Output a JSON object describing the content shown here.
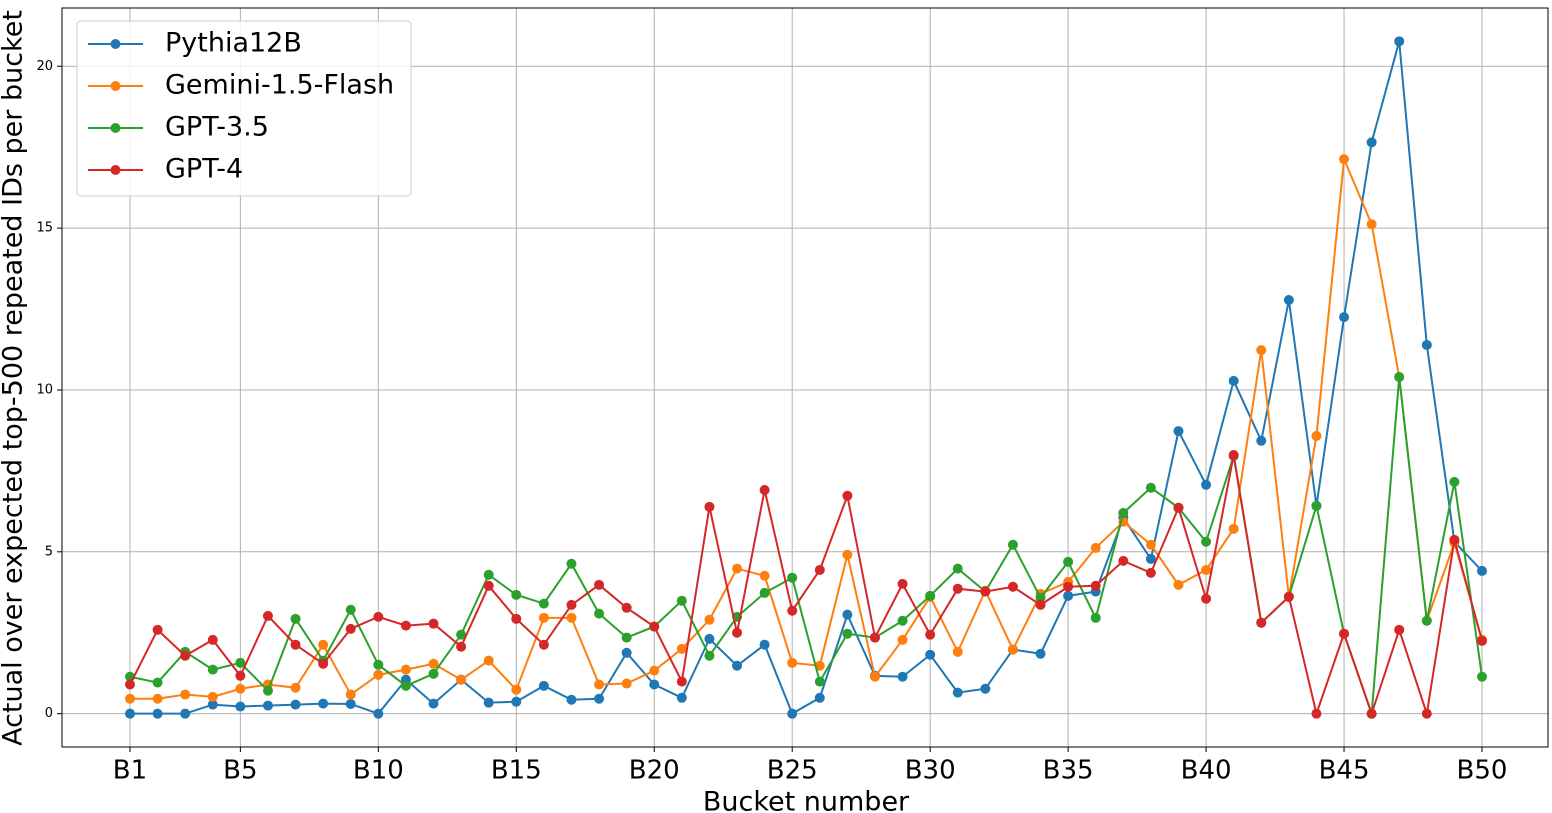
{
  "chart_data": {
    "type": "line",
    "xlabel": "Bucket number",
    "ylabel": "Actual over expected top-500 repeated IDs per bucket",
    "categories": [
      "B1",
      null,
      null,
      null,
      "B5",
      null,
      null,
      null,
      null,
      "B10",
      null,
      null,
      null,
      null,
      "B15",
      null,
      null,
      null,
      null,
      "B20",
      null,
      null,
      null,
      null,
      "B25",
      null,
      null,
      null,
      null,
      "B30",
      null,
      null,
      null,
      null,
      "B35",
      null,
      null,
      null,
      null,
      "B40",
      null,
      null,
      null,
      null,
      "B45",
      null,
      null,
      null,
      null,
      "B50"
    ],
    "ylim": [
      -1.03,
      21.8
    ],
    "yticks": [
      0,
      5,
      10,
      15,
      20
    ],
    "grid": true,
    "legend": "upper left",
    "series": [
      {
        "name": "Pythia12B",
        "color": "#1f77b4",
        "values": [
          0,
          0,
          0,
          0.28,
          0.22,
          0.25,
          0.28,
          0.31,
          0.3,
          0,
          1.05,
          0.31,
          1.05,
          0.34,
          0.37,
          0.86,
          0.43,
          0.46,
          1.88,
          0.9,
          0.49,
          2.31,
          1.48,
          2.13,
          0,
          0.49,
          3.06,
          1.17,
          1.14,
          1.82,
          0.65,
          0.77,
          1.98,
          1.85,
          3.64,
          3.77,
          6.05,
          4.78,
          8.73,
          7.07,
          10.28,
          8.43,
          12.78,
          6.42,
          12.25,
          17.65,
          20.77,
          11.39,
          5.31,
          4.41
        ]
      },
      {
        "name": "Gemini-1.5-Flash",
        "color": "#ff7f0e",
        "values": [
          0.46,
          0.46,
          0.59,
          0.52,
          0.77,
          0.9,
          0.8,
          2.13,
          0.59,
          1.2,
          1.36,
          1.54,
          1.05,
          1.64,
          0.74,
          2.96,
          2.96,
          0.9,
          0.93,
          1.33,
          2.0,
          2.9,
          4.48,
          4.26,
          1.57,
          1.48,
          4.91,
          1.14,
          2.28,
          3.61,
          1.91,
          3.8,
          1.98,
          3.7,
          4.07,
          5.12,
          5.93,
          5.22,
          3.98,
          4.44,
          5.71,
          11.23,
          3.61,
          8.58,
          17.13,
          15.12,
          10.4,
          2.87,
          5.28,
          2.28
        ]
      },
      {
        "name": "GPT-3.5",
        "color": "#2ca02c",
        "values": [
          1.14,
          0.96,
          1.91,
          1.36,
          1.57,
          0.71,
          2.93,
          1.64,
          3.21,
          1.51,
          0.86,
          1.23,
          2.44,
          4.29,
          3.67,
          3.4,
          4.63,
          3.09,
          2.35,
          2.69,
          3.49,
          1.79,
          2.99,
          3.73,
          4.2,
          0.99,
          2.47,
          2.35,
          2.87,
          3.64,
          4.48,
          3.77,
          5.22,
          3.58,
          4.69,
          2.96,
          6.2,
          6.98,
          6.36,
          5.31,
          7.96,
          2.81,
          3.61,
          6.42,
          2.47,
          0,
          10.4,
          2.87,
          7.16,
          1.14
        ]
      },
      {
        "name": "GPT-4",
        "color": "#d62728",
        "values": [
          0.9,
          2.59,
          1.79,
          2.28,
          1.17,
          3.02,
          2.13,
          1.54,
          2.62,
          2.99,
          2.72,
          2.78,
          2.07,
          3.95,
          2.93,
          2.13,
          3.36,
          3.98,
          3.27,
          2.69,
          0.99,
          6.39,
          2.5,
          6.91,
          3.18,
          4.44,
          6.73,
          2.35,
          4.01,
          2.44,
          3.86,
          3.77,
          3.92,
          3.36,
          3.92,
          3.95,
          4.72,
          4.35,
          6.36,
          3.55,
          7.99,
          2.81,
          3.61,
          0,
          2.47,
          0,
          2.59,
          0,
          5.37,
          2.25
        ]
      }
    ]
  }
}
